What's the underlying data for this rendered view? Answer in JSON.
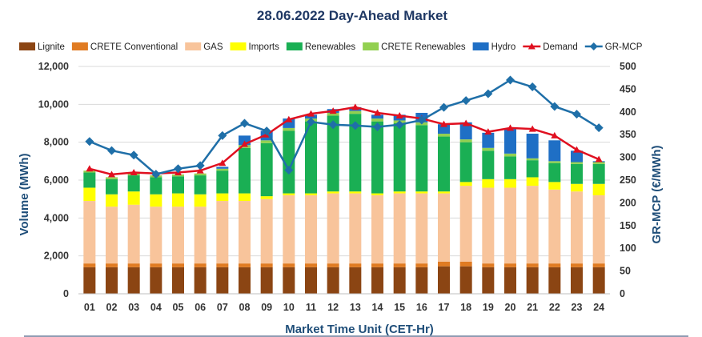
{
  "chart_data": {
    "type": "bar",
    "title": "28.06.2022  Day-Ahead Market",
    "xlabel": "Market Time Unit (CET-Hr)",
    "ylabel": "Volume (MWh)",
    "y2label": "GR-MCP (€/MWh)",
    "ylim": [
      0,
      12000
    ],
    "y2lim": [
      0,
      500
    ],
    "yticks": [
      "0",
      "2,000",
      "4,000",
      "6,000",
      "8,000",
      "10,000",
      "12,000"
    ],
    "y2ticks": [
      "0",
      "50",
      "100",
      "150",
      "200",
      "250",
      "300",
      "350",
      "400",
      "450",
      "500"
    ],
    "categories": [
      "01",
      "02",
      "03",
      "04",
      "05",
      "06",
      "07",
      "08",
      "09",
      "10",
      "11",
      "12",
      "13",
      "14",
      "15",
      "16",
      "17",
      "18",
      "19",
      "20",
      "21",
      "22",
      "23",
      "24"
    ],
    "series": [
      {
        "name": "Lignite",
        "kind": "bar",
        "color": "#8b4513",
        "values": [
          1400,
          1400,
          1400,
          1400,
          1400,
          1400,
          1400,
          1400,
          1400,
          1400,
          1400,
          1400,
          1400,
          1400,
          1400,
          1400,
          1450,
          1450,
          1400,
          1400,
          1400,
          1400,
          1400,
          1400
        ]
      },
      {
        "name": "CRETE Conventional",
        "kind": "bar",
        "color": "#e07b22",
        "values": [
          200,
          200,
          200,
          200,
          200,
          200,
          200,
          200,
          200,
          200,
          200,
          200,
          200,
          200,
          200,
          200,
          250,
          250,
          200,
          200,
          200,
          200,
          200,
          200
        ]
      },
      {
        "name": "GAS",
        "kind": "bar",
        "color": "#f8c49b",
        "values": [
          3300,
          3000,
          3100,
          3000,
          3000,
          3000,
          3300,
          3300,
          3400,
          3600,
          3600,
          3700,
          3700,
          3600,
          3700,
          3700,
          3600,
          4000,
          4000,
          4000,
          4100,
          3900,
          3800,
          3600
        ]
      },
      {
        "name": "Imports",
        "kind": "bar",
        "color": "#ffff00",
        "values": [
          700,
          650,
          700,
          650,
          700,
          650,
          400,
          400,
          150,
          100,
          100,
          100,
          100,
          100,
          100,
          100,
          100,
          200,
          450,
          450,
          450,
          400,
          400,
          600
        ]
      },
      {
        "name": "Renewables",
        "kind": "bar",
        "color": "#1aaf54",
        "values": [
          800,
          800,
          850,
          900,
          900,
          1000,
          1200,
          2400,
          2800,
          3300,
          3800,
          4000,
          4100,
          3800,
          3600,
          3500,
          2900,
          2100,
          1500,
          1200,
          900,
          1000,
          1050,
          1050
        ]
      },
      {
        "name": "CRETE Renewables",
        "kind": "bar",
        "color": "#92d050",
        "values": [
          100,
          100,
          100,
          100,
          100,
          100,
          100,
          150,
          150,
          150,
          150,
          150,
          150,
          150,
          150,
          150,
          150,
          150,
          150,
          150,
          100,
          100,
          100,
          100
        ]
      },
      {
        "name": "Hydro",
        "kind": "bar",
        "color": "#1f6fc5",
        "values": [
          0,
          0,
          0,
          0,
          0,
          0,
          100,
          500,
          500,
          500,
          200,
          200,
          200,
          200,
          300,
          500,
          500,
          900,
          800,
          1300,
          1300,
          1100,
          600,
          50
        ]
      },
      {
        "name": "Demand",
        "kind": "line",
        "axis": "left",
        "color": "#e01020",
        "marker": "triangle",
        "values": [
          6600,
          6300,
          6400,
          6350,
          6400,
          6500,
          6900,
          7900,
          8400,
          9200,
          9500,
          9650,
          9850,
          9550,
          9400,
          9250,
          8950,
          9000,
          8550,
          8750,
          8700,
          8350,
          7600,
          7100
        ]
      },
      {
        "name": "GR-MCP",
        "kind": "line",
        "axis": "right",
        "color": "#1f6fa8",
        "marker": "diamond",
        "values": [
          335,
          315,
          305,
          263,
          275,
          282,
          348,
          375,
          358,
          272,
          378,
          372,
          370,
          367,
          372,
          382,
          410,
          425,
          440,
          470,
          455,
          412,
          395,
          365
        ]
      }
    ]
  }
}
